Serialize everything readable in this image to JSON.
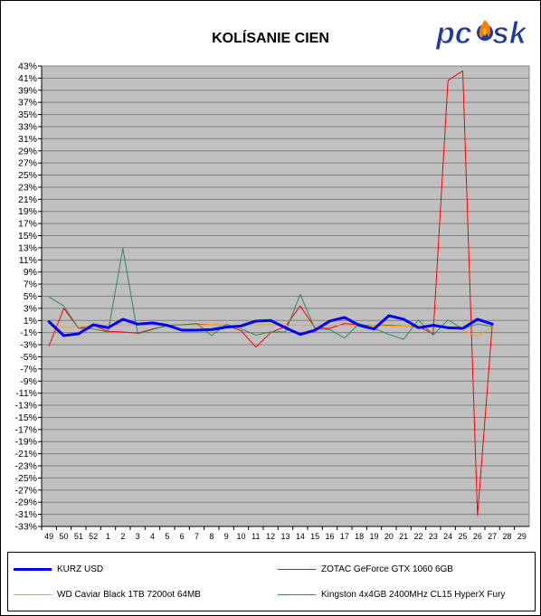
{
  "chart_data": {
    "type": "line",
    "title": "KOLÍSANIE CIEN",
    "xlabel": "",
    "ylabel": "",
    "x": [
      "49",
      "50",
      "51",
      "52",
      "1",
      "2",
      "3",
      "4",
      "5",
      "6",
      "7",
      "8",
      "9",
      "10",
      "11",
      "12",
      "13",
      "14",
      "15",
      "16",
      "17",
      "18",
      "19",
      "20",
      "21",
      "22",
      "23",
      "24",
      "25",
      "26",
      "27",
      "28",
      "29"
    ],
    "y_ticks": [
      "43%",
      "41%",
      "39%",
      "37%",
      "35%",
      "33%",
      "31%",
      "29%",
      "27%",
      "25%",
      "23%",
      "21%",
      "19%",
      "17%",
      "15%",
      "13%",
      "11%",
      "9%",
      "7%",
      "5%",
      "3%",
      "1%",
      "-1%",
      "-3%",
      "-5%",
      "-7%",
      "-9%",
      "-11%",
      "-13%",
      "-15%",
      "-17%",
      "-19%",
      "-21%",
      "-23%",
      "-25%",
      "-27%",
      "-29%",
      "-31%",
      "-33%"
    ],
    "ylim": [
      -33,
      43
    ],
    "grid": true,
    "legend_position": "bottom",
    "series": [
      {
        "name": "KURZ USD",
        "color": "#0000ff",
        "width": 3,
        "values": [
          0.8,
          -1.5,
          -1.2,
          0.3,
          -0.2,
          1.2,
          0.4,
          0.6,
          0.2,
          -0.6,
          -0.6,
          -0.5,
          -0.1,
          0.1,
          0.9,
          1.0,
          -0.2,
          -1.3,
          -0.6,
          0.9,
          1.5,
          0.2,
          -0.4,
          1.8,
          1.2,
          -0.2,
          0.2,
          -0.2,
          -0.3,
          1.2,
          0.4,
          null,
          null
        ]
      },
      {
        "name": "ZOTAC GeForce GTX 1060 6GB",
        "color": "#ff0000",
        "width": 1,
        "values": [
          -3.2,
          3.0,
          -0.3,
          0.2,
          -0.8,
          -0.9,
          -1.1,
          -0.4,
          0.1,
          0.3,
          0.4,
          0.3,
          0.2,
          -0.7,
          -3.4,
          -1.0,
          0.0,
          3.4,
          -0.2,
          -0.3,
          0.5,
          0.3,
          0.1,
          0.2,
          0.1,
          0.0,
          -1.2,
          40.6,
          42.2,
          -31.2,
          0.3,
          null,
          null
        ]
      },
      {
        "name": "WD Caviar Black 1TB 7200ot 64MB",
        "color": "#ffa500",
        "width": 1,
        "values": [
          0.6,
          -0.2,
          0.0,
          0.0,
          0.3,
          0.2,
          0.2,
          0.2,
          0.2,
          0.2,
          0.3,
          0.3,
          0.2,
          0.2,
          0.3,
          0.3,
          0.2,
          0.2,
          0.2,
          0.2,
          0.2,
          0.1,
          0.1,
          0.1,
          0.1,
          0.1,
          0.0,
          0.0,
          -0.6,
          -1.6,
          0.0,
          null,
          null
        ]
      },
      {
        "name": "Kingston 4x4GB 2400MHz CL15 HyperX Fury",
        "color": "#2e8b57",
        "width": 1,
        "values": [
          4.9,
          3.4,
          -0.3,
          -0.4,
          -0.9,
          12.9,
          -1.2,
          -0.5,
          0.2,
          0.3,
          0.5,
          -1.5,
          0.4,
          -0.4,
          -1.4,
          -0.9,
          -0.9,
          5.3,
          -0.4,
          -0.5,
          -1.9,
          0.5,
          -0.3,
          -1.3,
          -2.1,
          1.1,
          -1.4,
          1.1,
          -0.4,
          0.4,
          0.0,
          null,
          null
        ]
      }
    ]
  },
  "logo": {
    "text_p": "pc",
    "text_s": "sk"
  },
  "colors": {
    "plot_bg": "#c0c0c0",
    "grid": "#808080",
    "frame": "#000000"
  }
}
